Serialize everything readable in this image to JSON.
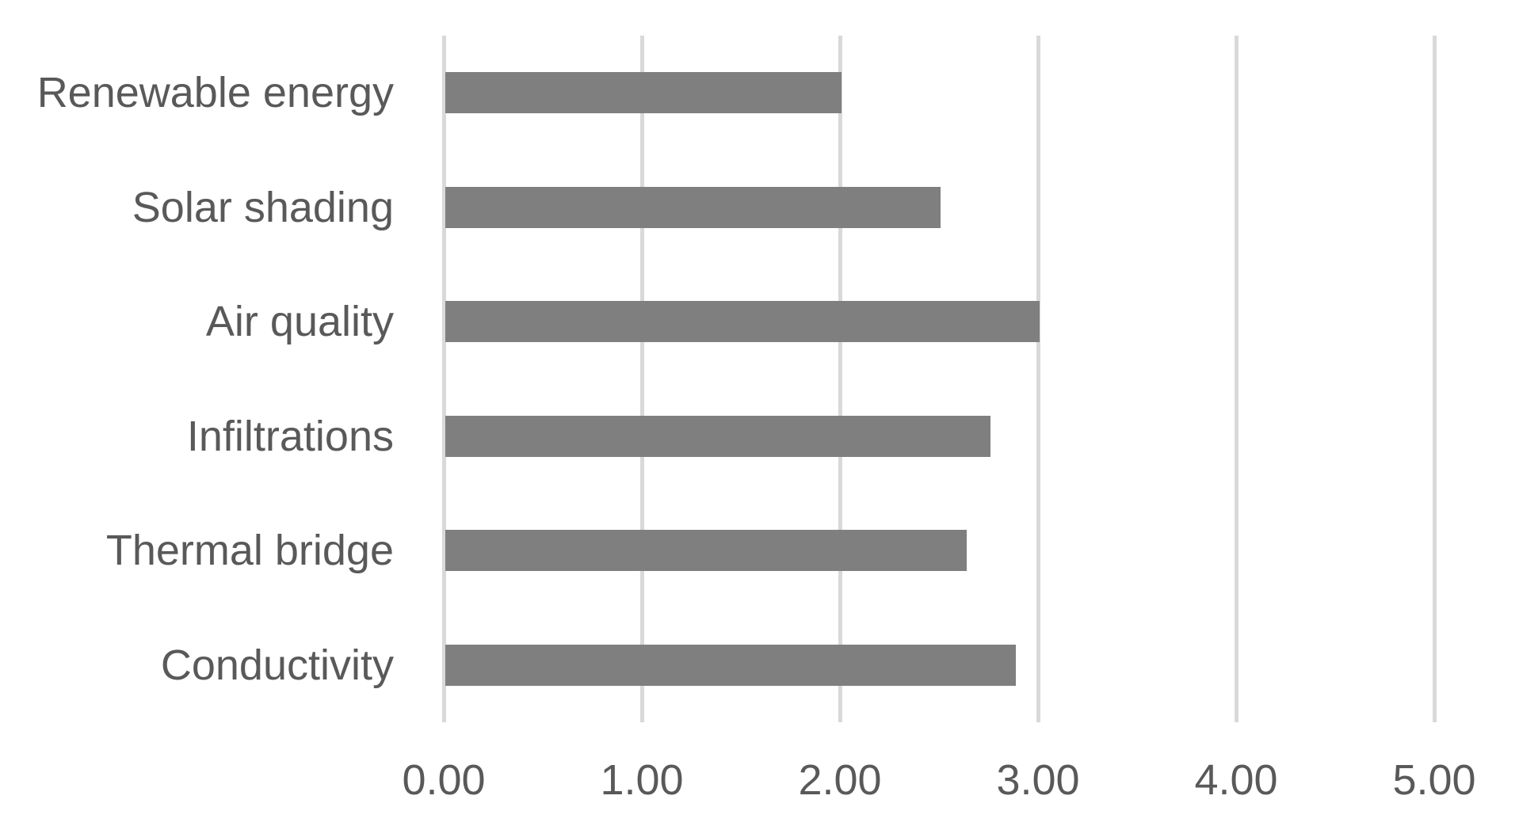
{
  "chart_data": {
    "type": "bar",
    "orientation": "horizontal",
    "title": "",
    "categories": [
      "Renewable energy",
      "Solar shading",
      "Air quality",
      "Infiltrations",
      "Thermal bridge",
      "Conductivity"
    ],
    "values": [
      2.0,
      2.5,
      3.0,
      2.75,
      2.63,
      2.88
    ],
    "xlabel": "",
    "ylabel": "",
    "xlim": [
      0,
      5
    ],
    "x_ticks": [
      "0.00",
      "1.00",
      "2.00",
      "3.00",
      "4.00",
      "5.00"
    ],
    "x_tick_values": [
      0,
      1,
      2,
      3,
      4,
      5
    ],
    "grid": true,
    "legend": false,
    "colors": {
      "bar": "#7F7F7F",
      "gridline": "#D9D9D9",
      "axis_line": "#D9D9D9",
      "label_text": "#595959",
      "background": "#FFFFFF"
    }
  }
}
